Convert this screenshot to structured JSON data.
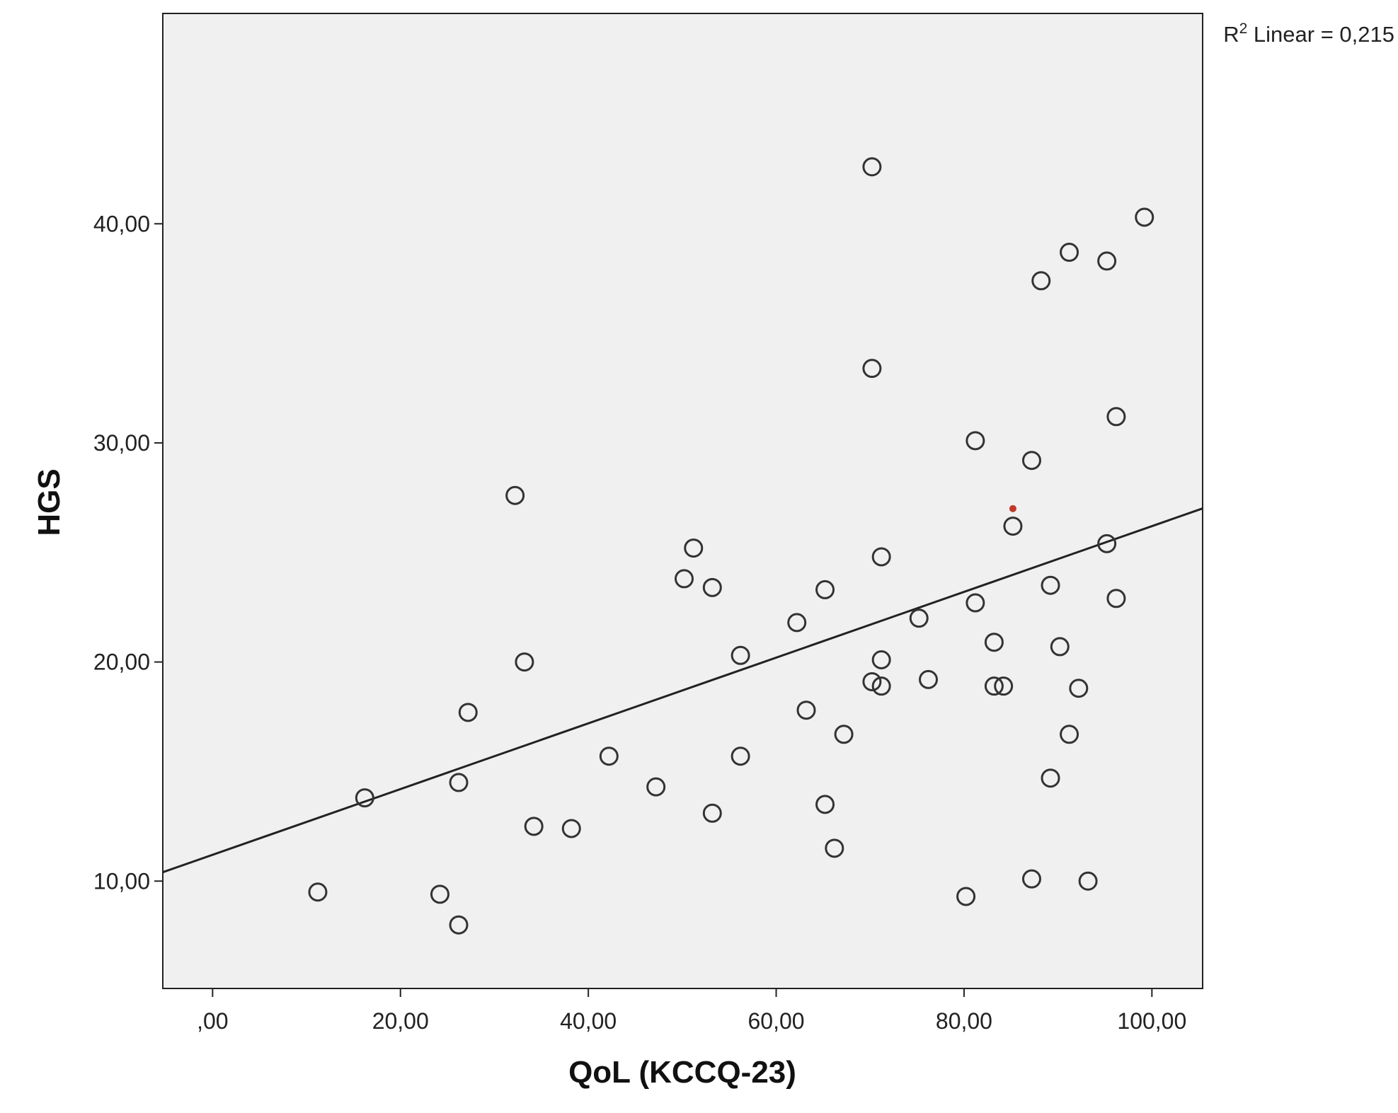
{
  "chart_data": {
    "type": "scatter",
    "title": "",
    "xlabel": "QoL (KCCQ-23)",
    "ylabel": "HGS",
    "xlim": [
      -5.3,
      105.4
    ],
    "ylim": [
      5.1,
      49.6
    ],
    "x_ticks": [
      0,
      20,
      40,
      60,
      80,
      100
    ],
    "x_tick_labels": [
      ",00",
      "20,00",
      "40,00",
      "60,00",
      "80,00",
      "100,00"
    ],
    "y_ticks": [
      10,
      20,
      30,
      40
    ],
    "y_tick_labels": [
      "10,00",
      "20,00",
      "30,00",
      "40,00"
    ],
    "grid": false,
    "legend": "none",
    "plot_background": "#f0f0f0",
    "marker_color": "#333333",
    "line_color": "#222222",
    "highlight_color": "#c0392b",
    "r2_annotation": {
      "base": "R",
      "superscript": "2",
      "rest": " Linear = 0,215"
    },
    "fit_line": {
      "intercept": 11.2,
      "slope": 0.15
    },
    "highlight_point": {
      "x": 85.2,
      "y": 27.0
    },
    "points": [
      {
        "x": 11.2,
        "y": 9.5
      },
      {
        "x": 16.2,
        "y": 13.8
      },
      {
        "x": 24.2,
        "y": 9.4
      },
      {
        "x": 26.2,
        "y": 8.0
      },
      {
        "x": 26.2,
        "y": 14.5
      },
      {
        "x": 27.2,
        "y": 17.7
      },
      {
        "x": 32.2,
        "y": 27.6
      },
      {
        "x": 33.2,
        "y": 20.0
      },
      {
        "x": 34.2,
        "y": 12.5
      },
      {
        "x": 38.2,
        "y": 12.4
      },
      {
        "x": 42.2,
        "y": 15.7
      },
      {
        "x": 47.2,
        "y": 14.3
      },
      {
        "x": 50.2,
        "y": 23.8
      },
      {
        "x": 51.2,
        "y": 25.2
      },
      {
        "x": 53.2,
        "y": 23.4
      },
      {
        "x": 53.2,
        "y": 13.1
      },
      {
        "x": 56.2,
        "y": 20.3
      },
      {
        "x": 56.2,
        "y": 15.7
      },
      {
        "x": 62.2,
        "y": 21.8
      },
      {
        "x": 63.2,
        "y": 17.8
      },
      {
        "x": 65.2,
        "y": 23.3
      },
      {
        "x": 65.2,
        "y": 13.5
      },
      {
        "x": 66.2,
        "y": 11.5
      },
      {
        "x": 67.2,
        "y": 16.7
      },
      {
        "x": 70.2,
        "y": 42.6
      },
      {
        "x": 70.2,
        "y": 33.4
      },
      {
        "x": 70.2,
        "y": 19.1
      },
      {
        "x": 71.2,
        "y": 24.8
      },
      {
        "x": 71.2,
        "y": 20.1
      },
      {
        "x": 71.2,
        "y": 18.9
      },
      {
        "x": 75.2,
        "y": 22.0
      },
      {
        "x": 76.2,
        "y": 19.2
      },
      {
        "x": 80.2,
        "y": 9.3
      },
      {
        "x": 81.2,
        "y": 30.1
      },
      {
        "x": 81.2,
        "y": 22.7
      },
      {
        "x": 83.2,
        "y": 20.9
      },
      {
        "x": 83.2,
        "y": 18.9
      },
      {
        "x": 84.2,
        "y": 18.9
      },
      {
        "x": 85.2,
        "y": 26.2
      },
      {
        "x": 87.2,
        "y": 29.2
      },
      {
        "x": 87.2,
        "y": 10.1
      },
      {
        "x": 88.2,
        "y": 37.4
      },
      {
        "x": 89.2,
        "y": 23.5
      },
      {
        "x": 89.2,
        "y": 14.7
      },
      {
        "x": 90.2,
        "y": 20.7
      },
      {
        "x": 91.2,
        "y": 38.7
      },
      {
        "x": 91.2,
        "y": 16.7
      },
      {
        "x": 92.2,
        "y": 18.8
      },
      {
        "x": 93.2,
        "y": 10.0
      },
      {
        "x": 95.2,
        "y": 38.3
      },
      {
        "x": 95.2,
        "y": 25.4
      },
      {
        "x": 96.2,
        "y": 31.2
      },
      {
        "x": 96.2,
        "y": 22.9
      },
      {
        "x": 99.2,
        "y": 40.3
      }
    ]
  }
}
